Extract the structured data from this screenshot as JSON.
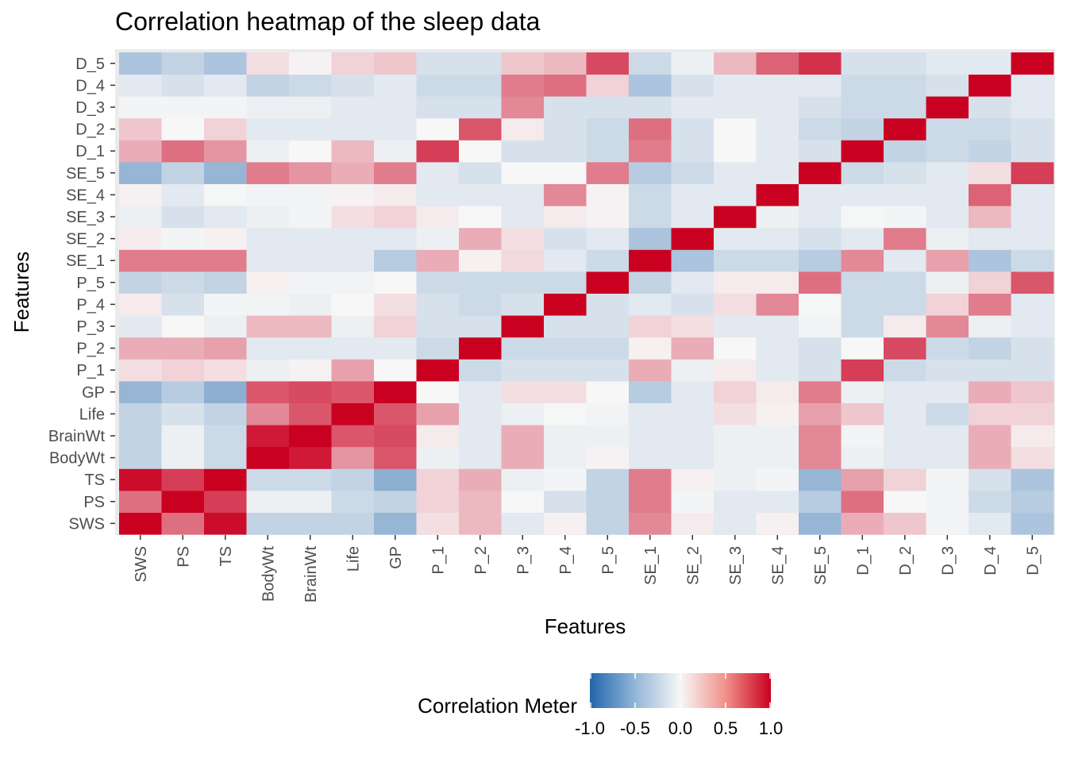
{
  "chart_data": {
    "type": "heatmap",
    "title": "Correlation heatmap of the sleep data",
    "xlabel": "Features",
    "ylabel": "Features",
    "features": [
      "SWS",
      "PS",
      "TS",
      "BodyWt",
      "BrainWt",
      "Life",
      "GP",
      "P_1",
      "P_2",
      "P_3",
      "P_4",
      "P_5",
      "SE_1",
      "SE_2",
      "SE_3",
      "SE_4",
      "SE_5",
      "D_1",
      "D_2",
      "D_3",
      "D_4",
      "D_5"
    ],
    "values": [
      [
        1.0,
        0.55,
        0.95,
        -0.25,
        -0.25,
        -0.25,
        -0.45,
        0.1,
        0.25,
        -0.1,
        0.03,
        -0.25,
        0.45,
        0.05,
        -0.1,
        0.03,
        -0.45,
        0.3,
        0.2,
        -0.02,
        -0.1,
        -0.35
      ],
      [
        0.55,
        1.0,
        0.75,
        -0.05,
        -0.05,
        -0.2,
        -0.25,
        0.15,
        0.25,
        0.0,
        -0.15,
        -0.25,
        0.5,
        -0.02,
        -0.1,
        -0.1,
        -0.3,
        0.55,
        0.0,
        -0.02,
        -0.2,
        -0.3
      ],
      [
        0.95,
        0.75,
        1.0,
        -0.2,
        -0.2,
        -0.25,
        -0.5,
        0.15,
        0.3,
        -0.05,
        -0.02,
        -0.25,
        0.5,
        0.03,
        -0.05,
        -0.02,
        -0.45,
        0.35,
        0.15,
        -0.02,
        -0.15,
        -0.35
      ],
      [
        -0.25,
        -0.05,
        -0.2,
        1.0,
        0.9,
        0.4,
        0.65,
        -0.05,
        -0.1,
        0.3,
        -0.05,
        0.02,
        -0.1,
        -0.1,
        -0.05,
        -0.05,
        0.45,
        -0.05,
        -0.1,
        -0.1,
        0.3,
        0.1
      ],
      [
        -0.25,
        -0.05,
        -0.2,
        0.9,
        1.0,
        0.65,
        0.7,
        0.05,
        -0.1,
        0.3,
        -0.05,
        -0.05,
        -0.1,
        -0.1,
        -0.05,
        -0.05,
        0.45,
        -0.02,
        -0.1,
        -0.1,
        0.3,
        0.05
      ],
      [
        -0.25,
        -0.15,
        -0.25,
        0.45,
        0.65,
        1.0,
        0.65,
        0.35,
        -0.1,
        -0.05,
        -0.01,
        -0.03,
        -0.1,
        -0.1,
        0.1,
        0.03,
        0.35,
        0.2,
        -0.1,
        -0.2,
        0.15,
        0.15
      ],
      [
        -0.45,
        -0.3,
        -0.5,
        0.65,
        0.7,
        0.65,
        1.0,
        0.0,
        -0.1,
        0.1,
        0.1,
        0.0,
        -0.3,
        -0.1,
        0.15,
        0.05,
        0.5,
        -0.05,
        -0.1,
        -0.1,
        0.3,
        0.2
      ],
      [
        0.1,
        0.15,
        0.1,
        -0.05,
        0.02,
        0.35,
        0.0,
        1.0,
        -0.2,
        -0.15,
        -0.15,
        -0.15,
        0.3,
        -0.05,
        0.05,
        -0.1,
        -0.15,
        0.75,
        -0.2,
        -0.15,
        -0.15,
        -0.15
      ],
      [
        0.3,
        0.3,
        0.35,
        -0.1,
        -0.1,
        -0.1,
        -0.1,
        -0.2,
        1.0,
        -0.2,
        -0.2,
        -0.2,
        0.03,
        0.3,
        0.0,
        -0.1,
        -0.15,
        0.0,
        0.7,
        -0.2,
        -0.25,
        -0.15
      ],
      [
        -0.1,
        0.0,
        -0.05,
        0.25,
        0.25,
        -0.05,
        0.15,
        -0.15,
        -0.15,
        1.0,
        -0.15,
        -0.15,
        0.15,
        0.1,
        -0.1,
        -0.1,
        -0.02,
        -0.2,
        0.05,
        0.45,
        -0.05,
        -0.1
      ],
      [
        0.05,
        -0.15,
        -0.02,
        -0.03,
        -0.05,
        0.0,
        0.1,
        -0.15,
        -0.2,
        -0.15,
        1.0,
        -0.15,
        -0.1,
        -0.15,
        0.1,
        0.45,
        -0.01,
        -0.2,
        -0.2,
        0.15,
        0.5,
        -0.1
      ],
      [
        -0.25,
        -0.2,
        -0.25,
        0.03,
        -0.03,
        -0.03,
        0.0,
        -0.2,
        -0.2,
        -0.2,
        -0.2,
        1.0,
        -0.25,
        -0.1,
        0.05,
        0.05,
        0.55,
        -0.2,
        -0.2,
        -0.05,
        0.15,
        0.65
      ],
      [
        0.5,
        0.5,
        0.5,
        -0.1,
        -0.1,
        -0.1,
        -0.3,
        0.3,
        0.03,
        0.12,
        -0.1,
        -0.2,
        1.0,
        -0.35,
        -0.2,
        -0.2,
        -0.3,
        0.45,
        -0.1,
        0.35,
        -0.35,
        -0.2
      ],
      [
        0.05,
        -0.02,
        0.03,
        -0.1,
        -0.1,
        -0.1,
        -0.1,
        -0.05,
        0.3,
        0.1,
        -0.15,
        -0.1,
        -0.35,
        1.0,
        -0.1,
        -0.1,
        -0.15,
        -0.1,
        0.5,
        -0.05,
        -0.1,
        -0.1
      ],
      [
        -0.05,
        -0.15,
        -0.1,
        -0.05,
        -0.02,
        0.1,
        0.15,
        0.05,
        0.0,
        -0.1,
        0.05,
        0.02,
        -0.2,
        -0.1,
        1.0,
        -0.05,
        -0.1,
        -0.01,
        -0.02,
        -0.1,
        0.25,
        -0.1
      ],
      [
        0.03,
        -0.1,
        -0.01,
        -0.03,
        -0.03,
        0.02,
        0.05,
        -0.1,
        -0.1,
        -0.1,
        0.45,
        0.02,
        -0.2,
        -0.1,
        -0.1,
        1.0,
        -0.1,
        -0.1,
        -0.1,
        -0.1,
        0.6,
        -0.1
      ],
      [
        -0.45,
        -0.25,
        -0.45,
        0.5,
        0.4,
        0.3,
        0.5,
        -0.1,
        -0.15,
        0.0,
        0.0,
        0.5,
        -0.3,
        -0.2,
        -0.1,
        -0.1,
        1.0,
        -0.2,
        -0.15,
        -0.1,
        0.1,
        0.75
      ],
      [
        0.3,
        0.55,
        0.4,
        -0.05,
        0.0,
        0.25,
        -0.05,
        0.75,
        0.0,
        -0.15,
        -0.15,
        -0.2,
        0.5,
        -0.15,
        0.0,
        -0.1,
        -0.15,
        1.0,
        -0.25,
        -0.2,
        -0.25,
        -0.15
      ],
      [
        0.2,
        0.0,
        0.15,
        -0.1,
        -0.1,
        -0.1,
        -0.1,
        0.0,
        0.65,
        0.05,
        -0.15,
        -0.2,
        0.55,
        -0.15,
        0.0,
        -0.1,
        -0.2,
        -0.25,
        1.0,
        -0.2,
        -0.2,
        -0.15
      ],
      [
        -0.02,
        -0.02,
        -0.02,
        -0.05,
        -0.05,
        -0.1,
        -0.1,
        -0.15,
        -0.15,
        0.45,
        -0.15,
        -0.15,
        -0.15,
        -0.1,
        -0.1,
        -0.1,
        -0.15,
        -0.2,
        -0.2,
        1.0,
        -0.15,
        -0.1
      ],
      [
        -0.1,
        -0.15,
        -0.1,
        -0.25,
        -0.2,
        -0.15,
        -0.1,
        -0.2,
        -0.2,
        0.5,
        0.55,
        0.15,
        -0.35,
        -0.15,
        -0.1,
        -0.1,
        -0.1,
        -0.2,
        -0.2,
        -0.15,
        1.0,
        -0.1
      ],
      [
        -0.35,
        -0.25,
        -0.35,
        0.1,
        0.02,
        0.15,
        0.2,
        -0.15,
        -0.15,
        0.2,
        0.25,
        0.7,
        -0.2,
        -0.05,
        0.25,
        0.6,
        0.8,
        -0.15,
        -0.15,
        -0.1,
        -0.1,
        1.0
      ]
    ],
    "legend": {
      "title": "Correlation Meter",
      "ticks": [
        "-1.0",
        "-0.5",
        "0.0",
        "0.5",
        "1.0"
      ],
      "range": [
        -1,
        1
      ],
      "placement": "bottom"
    },
    "colors": {
      "low": "#2166AC",
      "mid": "#F7F7F7",
      "high": "#CA0020",
      "panel_background": "#EBEBEB",
      "text": "#000000",
      "tick_text": "#4D4D4D"
    },
    "grid": true
  }
}
